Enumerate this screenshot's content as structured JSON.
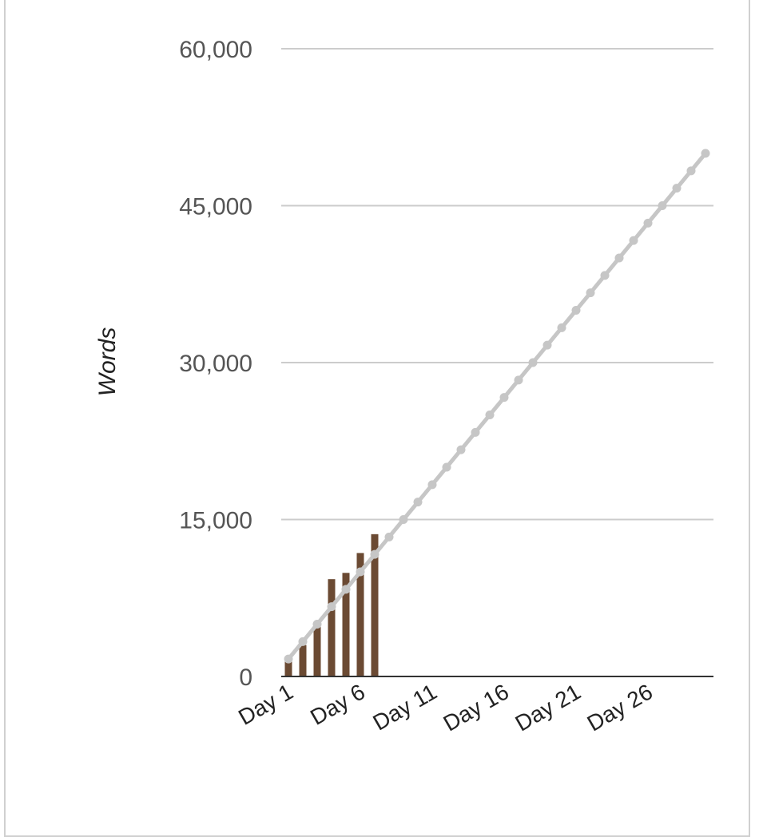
{
  "chart_data": {
    "type": "bar",
    "title": "",
    "xlabel": "",
    "ylabel": "Words",
    "ylim": [
      0,
      60000
    ],
    "yticks": [
      0,
      15000,
      30000,
      45000,
      60000
    ],
    "ytick_labels": [
      "0",
      "15,000",
      "30,000",
      "45,000",
      "60,000"
    ],
    "grid": true,
    "categories": [
      "Day 1",
      "Day 2",
      "Day 3",
      "Day 4",
      "Day 5",
      "Day 6",
      "Day 7",
      "Day 8",
      "Day 9",
      "Day 10",
      "Day 11",
      "Day 12",
      "Day 13",
      "Day 14",
      "Day 15",
      "Day 16",
      "Day 17",
      "Day 18",
      "Day 19",
      "Day 20",
      "Day 21",
      "Day 22",
      "Day 23",
      "Day 24",
      "Day 25",
      "Day 26",
      "Day 27",
      "Day 28",
      "Day 29",
      "Day 30"
    ],
    "xtick_labels": [
      "Day 1",
      "Day 6",
      "Day 11",
      "Day 16",
      "Day 21",
      "Day 26"
    ],
    "series": [
      {
        "type": "bar",
        "color": "#6b4a33",
        "values": [
          1700,
          3000,
          4800,
          9300,
          9900,
          11800,
          13600,
          0,
          0,
          0,
          0,
          0,
          0,
          0,
          0,
          0,
          0,
          0,
          0,
          0,
          0,
          0,
          0,
          0,
          0,
          0,
          0,
          0,
          0,
          0
        ]
      },
      {
        "type": "line",
        "color": "#c6c6c6",
        "values": [
          1667,
          3333,
          5000,
          6667,
          8333,
          10000,
          11667,
          13333,
          15000,
          16667,
          18333,
          20000,
          21667,
          23333,
          25000,
          26667,
          28333,
          30000,
          31667,
          33333,
          35000,
          36667,
          38333,
          40000,
          41667,
          43333,
          45000,
          46667,
          48333,
          50000
        ]
      }
    ]
  }
}
